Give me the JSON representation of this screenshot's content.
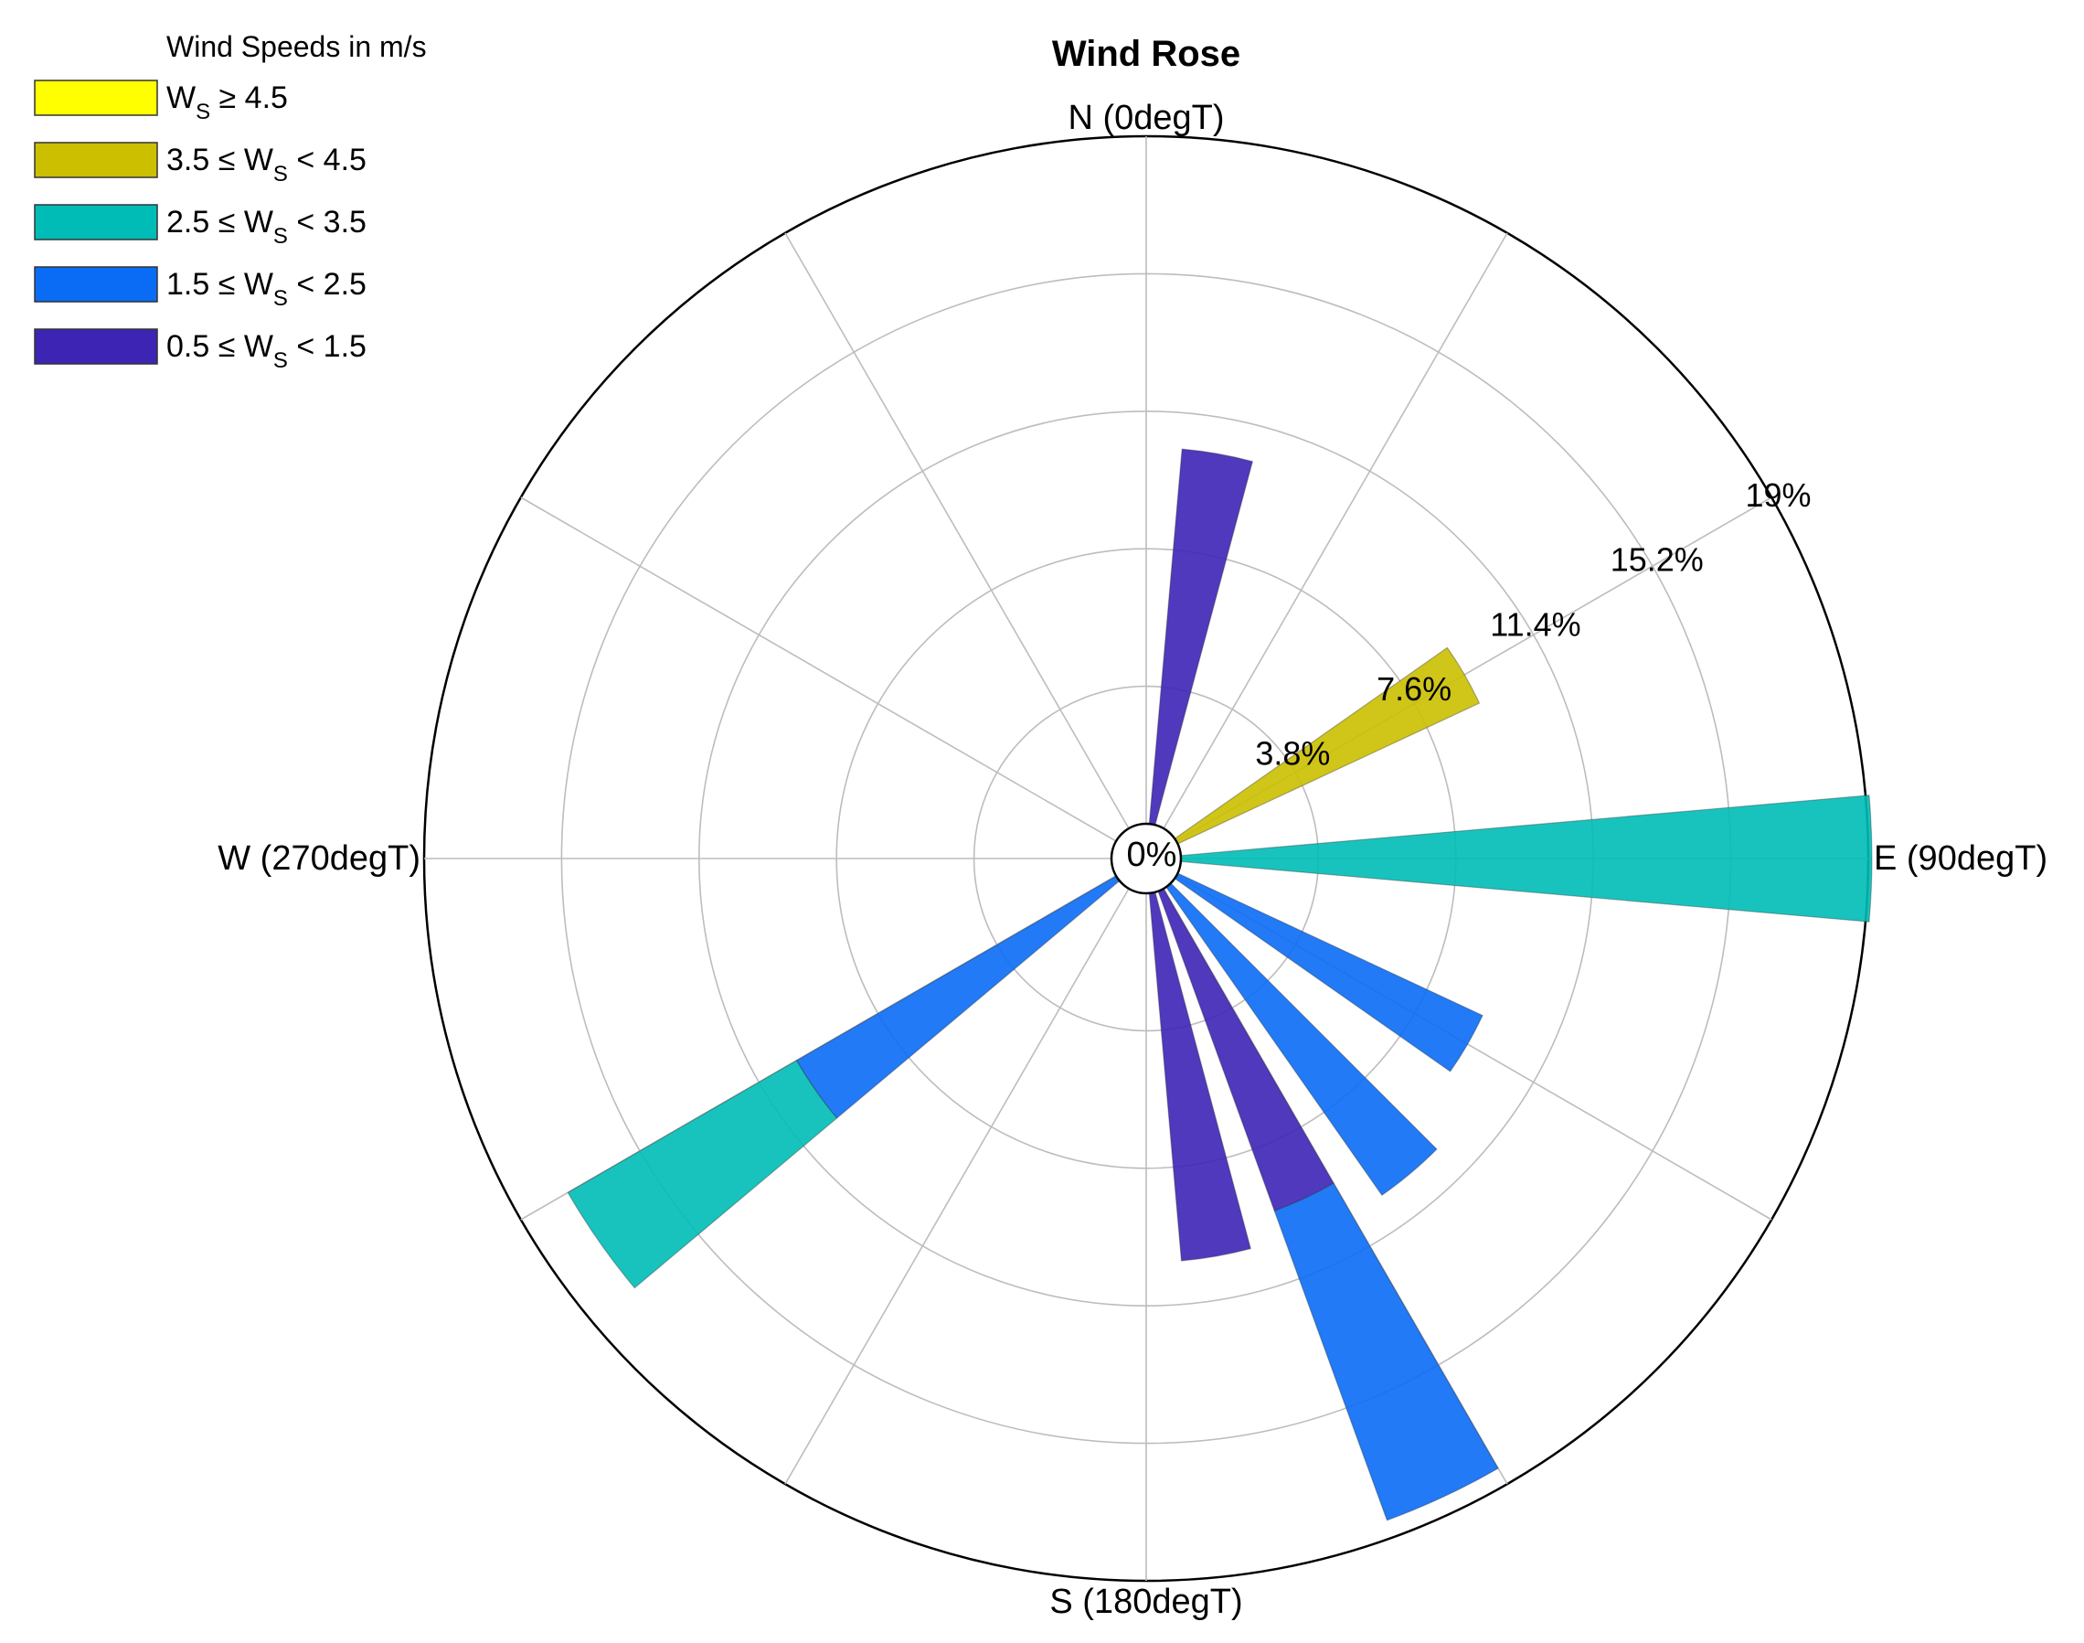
{
  "chart_data": {
    "type": "wind-rose",
    "title": "Wind Rose",
    "direction_labels": [
      {
        "deg": 0,
        "label": "N (0degT)"
      },
      {
        "deg": 90,
        "label": "E (90degT)"
      },
      {
        "deg": 180,
        "label": "S (180degT)"
      },
      {
        "deg": 270,
        "label": "W (270degT)"
      }
    ],
    "radial_axis": {
      "max": 19,
      "rings": [
        3.8,
        7.6,
        11.4,
        15.2,
        19
      ],
      "ring_labels": [
        "3.8%",
        "7.6%",
        "11.4%",
        "15.2%",
        "19%"
      ],
      "center_label": "0%",
      "label_angle_deg": 62
    },
    "legend": {
      "title": "Wind Speeds in m/s",
      "position": "top-left",
      "entries": [
        {
          "name": "Ws ≥ 4.5",
          "prefix": "",
          "op_left": "",
          "symbol": "W",
          "sub": "S",
          "op_right": " ≥ 4.5",
          "color": "#ffff00"
        },
        {
          "name": "3.5 ≤ Ws < 4.5",
          "prefix": "3.5 ",
          "op_left": "≤ ",
          "symbol": "W",
          "sub": "S",
          "op_right": " < 4.5",
          "color": "#cbbf00"
        },
        {
          "name": "2.5 ≤ Ws < 3.5",
          "prefix": "2.5 ",
          "op_left": "≤ ",
          "symbol": "W",
          "sub": "S",
          "op_right": " < 3.5",
          "color": "#00bcb6"
        },
        {
          "name": "1.5 ≤ Ws < 2.5",
          "prefix": "1.5 ",
          "op_left": "≤ ",
          "symbol": "W",
          "sub": "S",
          "op_right": " < 2.5",
          "color": "#0a6cf5"
        },
        {
          "name": "0.5 ≤ Ws < 1.5",
          "prefix": "0.5 ",
          "op_left": "≤ ",
          "symbol": "W",
          "sub": "S",
          "op_right": " < 1.5",
          "color": "#3d24b5"
        }
      ]
    },
    "sector_width_deg": 10,
    "sectors": [
      {
        "dir": 10,
        "bins": [
          {
            "class": "0.5 ≤ Ws < 1.5",
            "from": 0,
            "to": 10.4
          }
        ]
      },
      {
        "dir": 60,
        "bins": [
          {
            "class": "3.5 ≤ Ws < 4.5",
            "from": 0,
            "to": 9.2
          }
        ]
      },
      {
        "dir": 90,
        "bins": [
          {
            "class": "2.5 ≤ Ws < 3.5",
            "from": 0,
            "to": 19.1
          }
        ]
      },
      {
        "dir": 120,
        "bins": [
          {
            "class": "1.5 ≤ Ws < 2.5",
            "from": 0,
            "to": 9.3
          }
        ]
      },
      {
        "dir": 140,
        "bins": [
          {
            "class": "1.5 ≤ Ws < 2.5",
            "from": 0,
            "to": 10.4
          }
        ]
      },
      {
        "dir": 155,
        "bins": [
          {
            "class": "0.5 ≤ Ws < 1.5",
            "from": 0,
            "to": 9.4
          },
          {
            "class": "1.5 ≤ Ws < 2.5",
            "from": 9.4,
            "to": 18.5
          }
        ]
      },
      {
        "dir": 170,
        "bins": [
          {
            "class": "0.5 ≤ Ws < 1.5",
            "from": 0,
            "to": 10.2
          }
        ]
      },
      {
        "dir": 235,
        "bins": [
          {
            "class": "1.5 ≤ Ws < 2.5",
            "from": 0,
            "to": 10.2
          },
          {
            "class": "2.5 ≤ Ws < 3.5",
            "from": 10.2,
            "to": 17.5
          }
        ]
      }
    ]
  }
}
